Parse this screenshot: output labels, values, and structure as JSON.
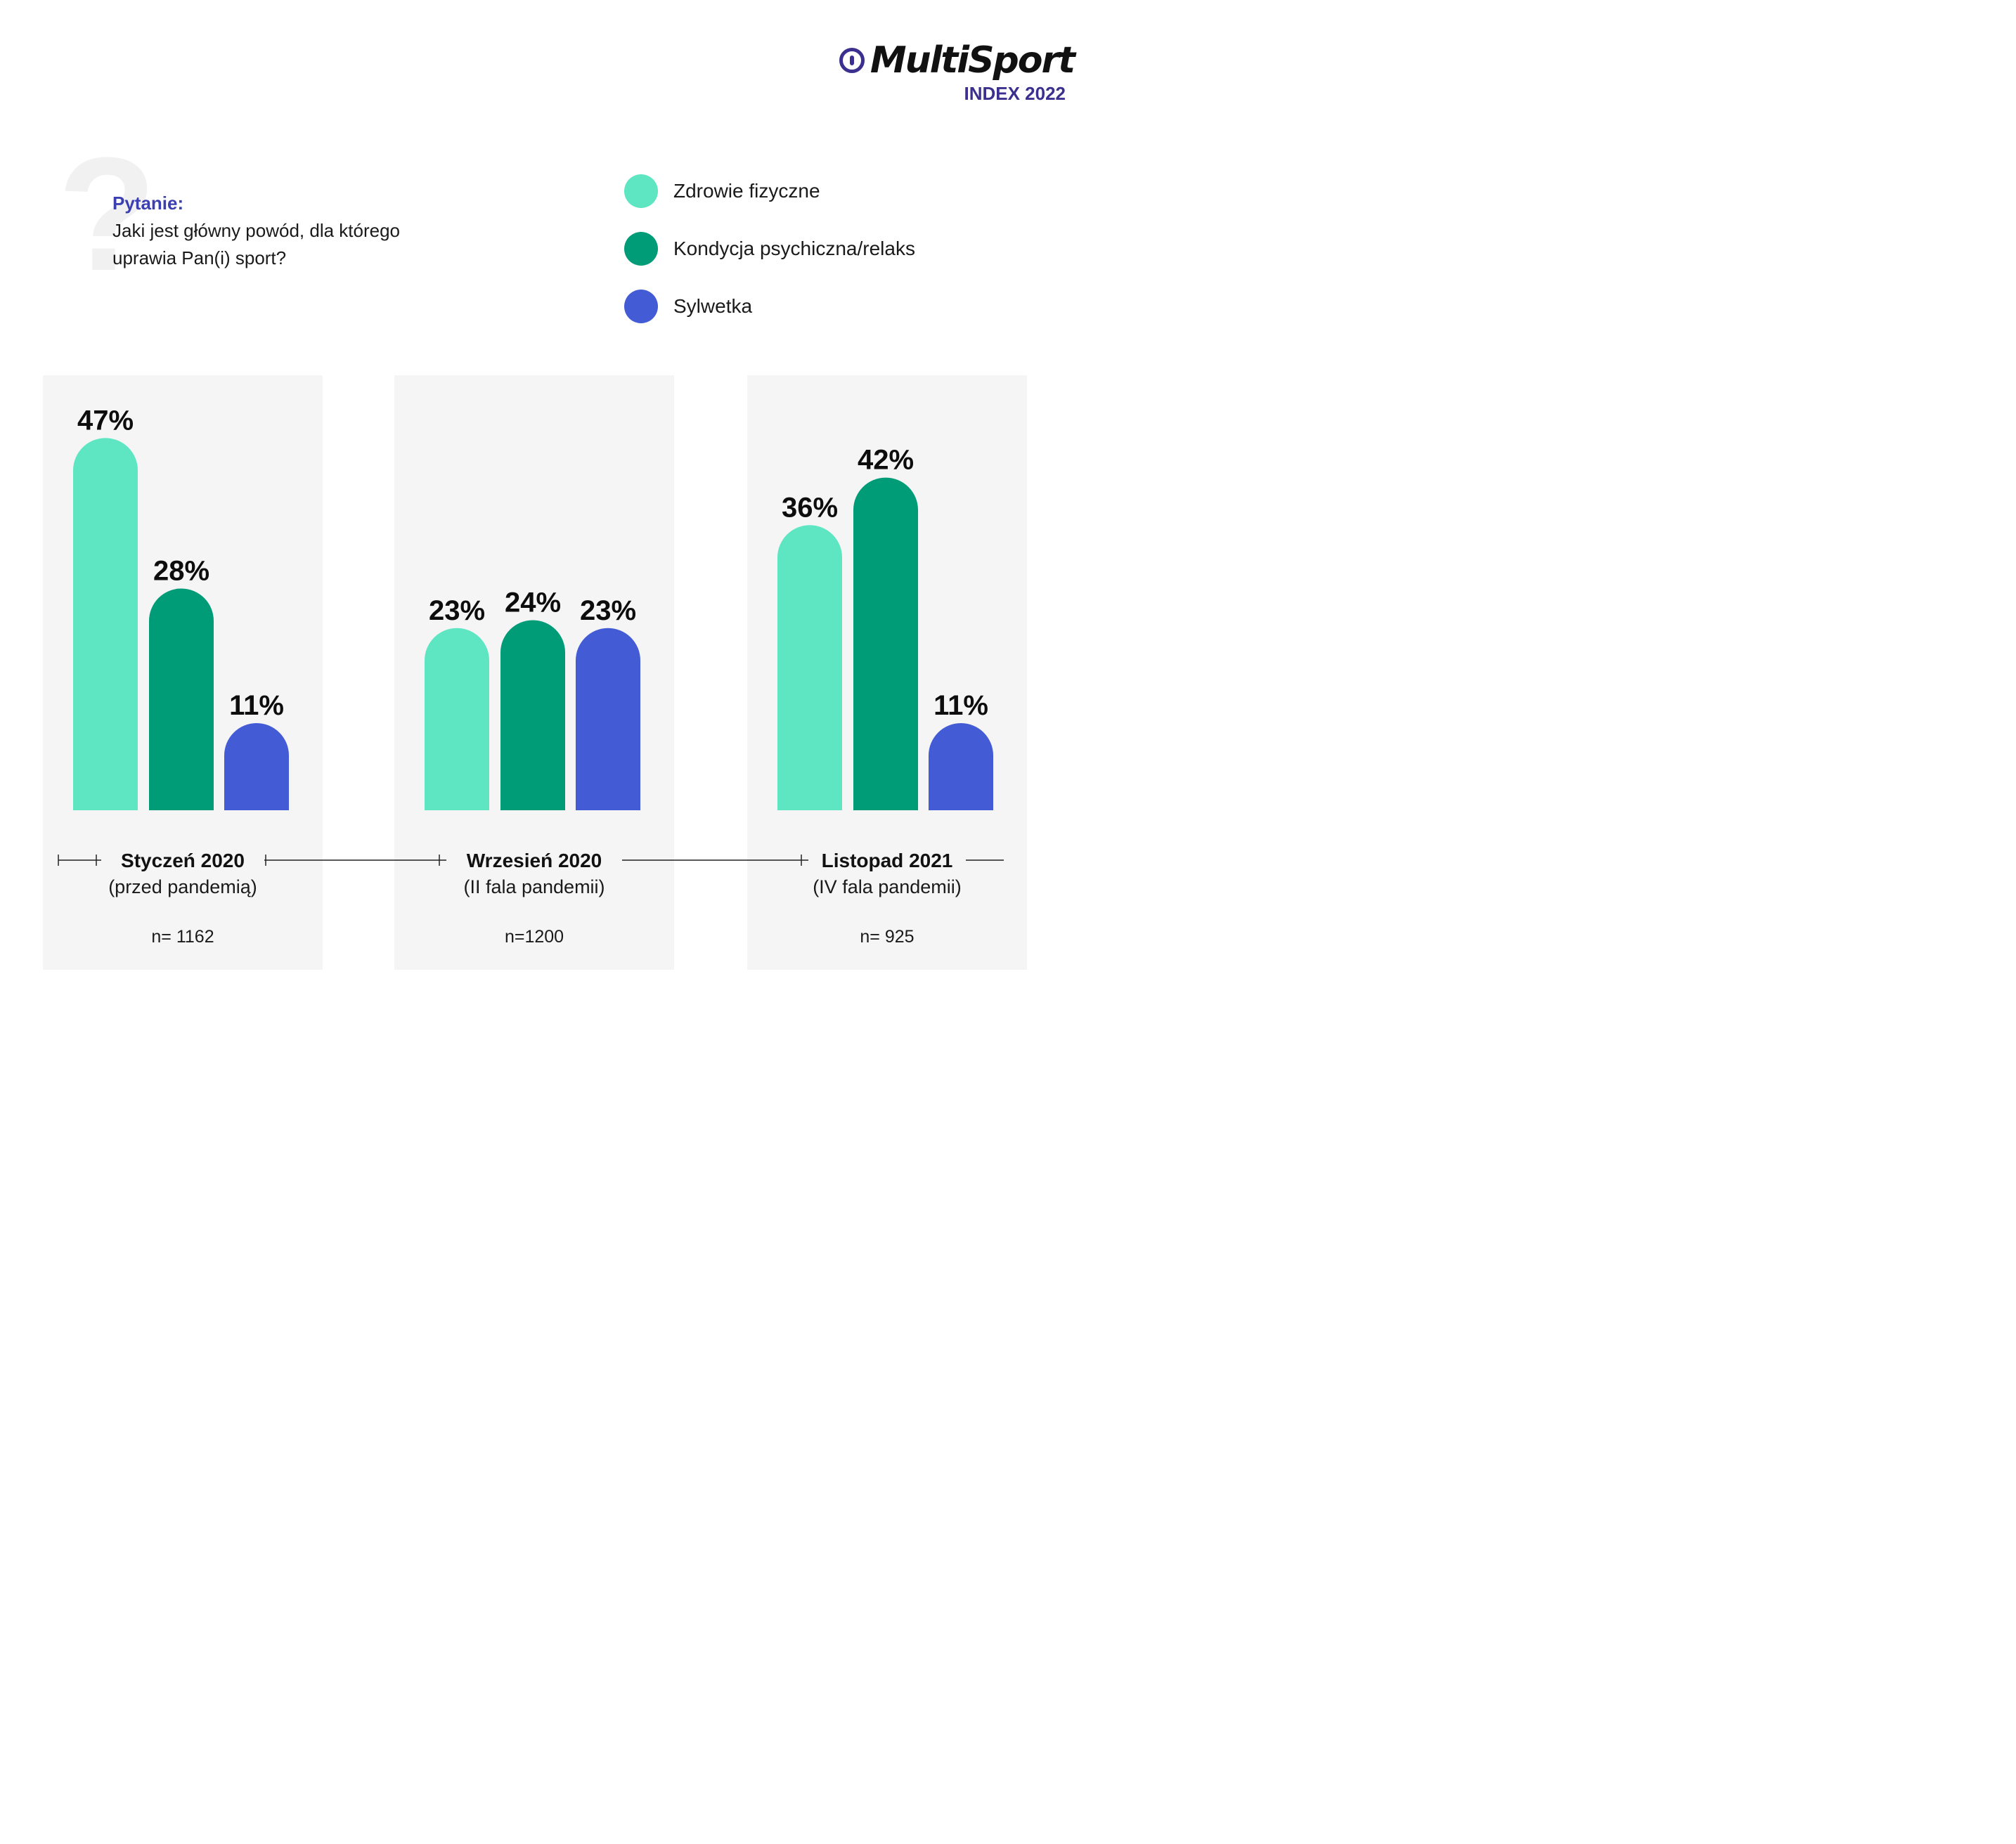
{
  "brand": {
    "name": "MultiSport",
    "subtitle": "INDEX 2022"
  },
  "question": {
    "label": "Pytanie:",
    "line1": "Jaki jest główny powód, dla którego",
    "line2": "uprawia Pan(i) sport?"
  },
  "colors": {
    "panel": "#f5f5f5",
    "Zdrowie fizyczne": "#5ee6c3",
    "Kondycja psychiczna/relaks": "#009b77",
    "Sylwetka": "#445bd6",
    "brand": "#3b2f8f"
  },
  "chart_data": {
    "type": "bar",
    "categories": [
      "Styczeń 2020",
      "Wrzesień 2020",
      "Listopad 2021"
    ],
    "category_notes": [
      "(przed pandemią)",
      "(II fala pandemii)",
      "(IV fala pandemii)"
    ],
    "sample_sizes": [
      "n= 1162",
      "n=1200",
      "n= 925"
    ],
    "series": [
      {
        "name": "Zdrowie fizyczne",
        "values": [
          47,
          23,
          36
        ]
      },
      {
        "name": "Kondycja psychiczna/relaks",
        "values": [
          28,
          24,
          42
        ]
      },
      {
        "name": "Sylwetka",
        "values": [
          11,
          23,
          11
        ]
      }
    ],
    "value_suffix": "%",
    "legend_position": "top-right",
    "grid": false
  }
}
